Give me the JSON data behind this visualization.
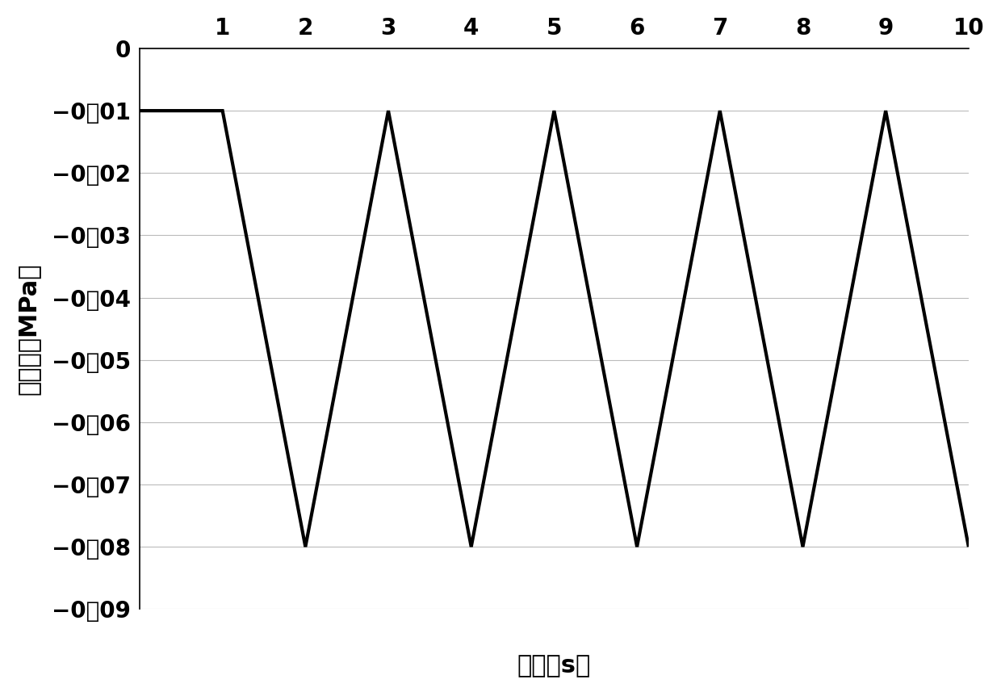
{
  "x_values": [
    0,
    1,
    2,
    3,
    4,
    5,
    6,
    7,
    8,
    9,
    10
  ],
  "y_values": [
    -0.01,
    -0.01,
    -0.08,
    -0.01,
    -0.08,
    -0.01,
    -0.08,
    -0.01,
    -0.08,
    -0.01,
    -0.08
  ],
  "xlim": [
    0,
    10
  ],
  "ylim": [
    -0.09,
    0
  ],
  "xticks": [
    1,
    2,
    3,
    4,
    5,
    6,
    7,
    8,
    9,
    10
  ],
  "yticks": [
    0,
    -0.01,
    -0.02,
    -0.03,
    -0.04,
    -0.05,
    -0.06,
    -0.07,
    -0.08,
    -0.09
  ],
  "ytick_labels": [
    "0",
    "−0．01",
    "−0．02",
    "−0．03",
    "−0．04",
    "−0．05",
    "−0．06",
    "−0．07",
    "−0．08",
    "−0．09"
  ],
  "xlabel": "时间（s）",
  "ylabel": "真空度（MPa）",
  "line_color": "#000000",
  "line_width": 3.0,
  "background_color": "#ffffff",
  "grid_color": "#bbbbbb",
  "xlabel_fontsize": 22,
  "ylabel_fontsize": 22,
  "tick_fontsize": 20,
  "ylabel_rotation": 90
}
